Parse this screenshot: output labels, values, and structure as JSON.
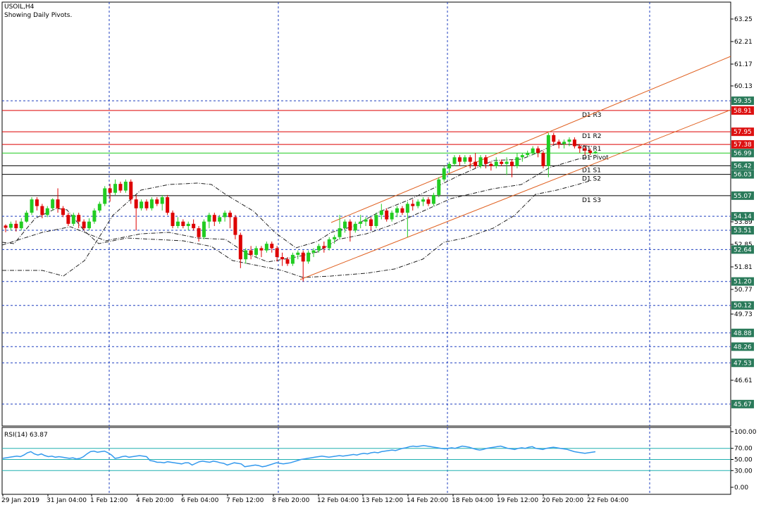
{
  "header": {
    "symbol": "USOIL,H4",
    "subtitle": "Showing Daily Pivots."
  },
  "colors": {
    "background": "#ffffff",
    "frame": "#000000",
    "grid": "#1f3fbf",
    "bull": "#22cc22",
    "bear": "#dd0000",
    "pivot_line": "#dd0000",
    "support_line": "#000000",
    "channel": "#e06020",
    "bands": "#222222",
    "rsi_line": "#3399ee",
    "rsi_level": "#20b0b0",
    "badge_green": "#2a7a5a",
    "badge_red": "#dd1111"
  },
  "chart_data": [
    {
      "type": "candlestick",
      "symbol": "USOIL",
      "timeframe": "H4",
      "y_axis_ticks": [
        "63.25",
        "62.21",
        "61.17",
        "60.13",
        "53.89",
        "52.85",
        "51.81",
        "50.77",
        "49.73",
        "46.61"
      ],
      "ylim": [
        45.4,
        63.8
      ],
      "x_axis_ticks": [
        "29 Jan 2019",
        "31 Jan 04:00",
        "1 Feb 12:00",
        "4 Feb 20:00",
        "6 Feb 04:00",
        "7 Feb 12:00",
        "8 Feb 20:00",
        "12 Feb 04:00",
        "13 Feb 12:00",
        "14 Feb 20:00",
        "18 Feb 04:00",
        "19 Feb 12:00",
        "20 Feb 20:00",
        "22 Feb 04:00"
      ],
      "pivots": [
        {
          "label": "D1 R3",
          "value": 58.91
        },
        {
          "label": "D1 R2",
          "value": 57.95
        },
        {
          "label": "D1 R1",
          "value": 57.38
        },
        {
          "label": "D1 Pivot",
          "value": 56.99
        },
        {
          "label": "D1 S1",
          "value": 56.42
        },
        {
          "label": "D1 S2",
          "value": 56.03
        },
        {
          "label": "D1 S3",
          "value": 55.07
        }
      ],
      "price_labels": [
        {
          "text": "59.35",
          "style": "green"
        },
        {
          "text": "58.91",
          "style": "red"
        },
        {
          "text": "57.95",
          "style": "red"
        },
        {
          "text": "57.38",
          "style": "red"
        },
        {
          "text": "56.99",
          "style": "green"
        },
        {
          "text": "56.42",
          "style": "green"
        },
        {
          "text": "56.03",
          "style": "green"
        },
        {
          "text": "55.07",
          "style": "green"
        },
        {
          "text": "54.14",
          "style": "green"
        },
        {
          "text": "53.51",
          "style": "green"
        },
        {
          "text": "52.64",
          "style": "green"
        },
        {
          "text": "51.20",
          "style": "green"
        },
        {
          "text": "50.12",
          "style": "green"
        },
        {
          "text": "48.88",
          "style": "green"
        },
        {
          "text": "48.26",
          "style": "green"
        },
        {
          "text": "47.53",
          "style": "green"
        },
        {
          "text": "45.67",
          "style": "green"
        }
      ],
      "horizontal_levels": [
        59.35,
        54.14,
        53.51,
        52.64,
        51.2,
        50.12,
        48.88,
        48.26,
        47.53,
        45.67
      ],
      "channel": {
        "lower": {
          "from": [
            "8 Feb 20:00",
            51.2
          ],
          "to": [
            "right-edge",
            58.95
          ]
        },
        "upper": {
          "from": [
            "12 Feb 04:00",
            54.0
          ],
          "to": [
            "right-edge",
            61.25
          ]
        }
      },
      "candles": [
        [
          53.72,
          53.62,
          53.78,
          53.42
        ],
        [
          53.62,
          53.8,
          53.9,
          53.5
        ],
        [
          53.8,
          53.6,
          53.95,
          53.45
        ],
        [
          53.6,
          53.9,
          54.05,
          53.5
        ],
        [
          53.9,
          54.3,
          54.4,
          53.85
        ],
        [
          54.3,
          54.9,
          55.0,
          54.2
        ],
        [
          54.9,
          54.6,
          55.0,
          54.4
        ],
        [
          54.6,
          54.2,
          54.7,
          54.05
        ],
        [
          54.2,
          54.5,
          54.6,
          54.1
        ],
        [
          54.5,
          54.9,
          54.95,
          54.4
        ],
        [
          54.9,
          54.5,
          55.4,
          54.3
        ],
        [
          54.5,
          54.2,
          54.6,
          54.1
        ],
        [
          54.2,
          53.8,
          54.3,
          53.7
        ],
        [
          53.8,
          54.2,
          54.3,
          53.7
        ],
        [
          54.2,
          53.9,
          54.3,
          53.6
        ],
        [
          53.9,
          53.6,
          54.0,
          53.5
        ],
        [
          53.6,
          53.9,
          54.05,
          53.5
        ],
        [
          53.9,
          54.4,
          54.5,
          53.8
        ],
        [
          54.4,
          54.7,
          54.8,
          54.3
        ],
        [
          54.7,
          55.4,
          55.5,
          54.6
        ],
        [
          55.4,
          55.2,
          55.6,
          54.8
        ],
        [
          55.2,
          55.6,
          55.8,
          55.1
        ],
        [
          55.6,
          55.3,
          55.7,
          55.2
        ],
        [
          55.3,
          55.7,
          55.8,
          55.2
        ],
        [
          55.7,
          54.9,
          55.8,
          54.7
        ],
        [
          54.9,
          54.5,
          55.1,
          53.5
        ],
        [
          54.5,
          54.8,
          54.9,
          54.4
        ],
        [
          54.8,
          54.5,
          54.9,
          54.4
        ],
        [
          54.5,
          54.9,
          55.0,
          54.4
        ],
        [
          54.9,
          54.7,
          55.0,
          54.6
        ],
        [
          54.7,
          55.0,
          55.1,
          54.4
        ],
        [
          55.0,
          54.3,
          55.1,
          54.2
        ],
        [
          54.3,
          53.7,
          54.4,
          53.6
        ],
        [
          53.7,
          53.9,
          54.1,
          53.6
        ],
        [
          53.9,
          53.7,
          54.0,
          53.6
        ],
        [
          53.7,
          53.8,
          53.9,
          53.5
        ],
        [
          53.8,
          53.6,
          54.0,
          53.5
        ],
        [
          53.6,
          53.2,
          53.7,
          53.0
        ],
        [
          53.2,
          53.9,
          54.0,
          53.1
        ],
        [
          53.9,
          54.2,
          54.3,
          53.6
        ],
        [
          54.2,
          53.9,
          54.3,
          53.7
        ],
        [
          53.9,
          54.1,
          54.2,
          53.8
        ],
        [
          54.1,
          54.3,
          54.4,
          53.9
        ],
        [
          54.3,
          54.1,
          54.4,
          53.6
        ],
        [
          54.1,
          53.3,
          54.2,
          53.1
        ],
        [
          53.3,
          52.2,
          53.4,
          51.8
        ],
        [
          52.2,
          52.6,
          52.7,
          52.0
        ],
        [
          52.6,
          52.4,
          52.8,
          52.2
        ],
        [
          52.4,
          52.7,
          52.8,
          52.3
        ],
        [
          52.7,
          52.6,
          52.8,
          52.3
        ],
        [
          52.6,
          52.9,
          53.0,
          52.5
        ],
        [
          52.9,
          52.7,
          53.0,
          52.5
        ],
        [
          52.7,
          52.3,
          52.8,
          52.1
        ],
        [
          52.3,
          52.2,
          52.5,
          51.9
        ],
        [
          52.2,
          52.0,
          52.3,
          51.9
        ],
        [
          52.0,
          52.4,
          52.5,
          51.9
        ],
        [
          52.4,
          52.5,
          52.6,
          52.2
        ],
        [
          52.5,
          52.1,
          52.6,
          51.2
        ],
        [
          52.1,
          52.5,
          52.6,
          52.0
        ],
        [
          52.5,
          52.6,
          52.7,
          52.3
        ],
        [
          52.6,
          52.8,
          52.9,
          52.5
        ],
        [
          52.8,
          52.7,
          53.0,
          52.5
        ],
        [
          52.7,
          53.1,
          53.2,
          52.6
        ],
        [
          53.1,
          53.2,
          53.3,
          52.9
        ],
        [
          53.2,
          53.6,
          54.2,
          53.1
        ],
        [
          53.6,
          53.9,
          54.0,
          53.4
        ],
        [
          53.9,
          53.5,
          54.0,
          53.0
        ],
        [
          53.5,
          53.8,
          53.9,
          53.4
        ],
        [
          53.8,
          53.9,
          54.2,
          53.6
        ],
        [
          53.9,
          54.0,
          54.1,
          53.7
        ],
        [
          54.0,
          53.7,
          54.1,
          53.5
        ],
        [
          53.7,
          54.2,
          54.3,
          53.6
        ],
        [
          54.2,
          54.4,
          54.7,
          54.0
        ],
        [
          54.4,
          54.0,
          54.5,
          53.9
        ],
        [
          54.0,
          54.3,
          54.4,
          53.9
        ],
        [
          54.3,
          54.5,
          54.6,
          54.1
        ],
        [
          54.5,
          54.3,
          54.6,
          54.2
        ],
        [
          54.3,
          54.7,
          54.8,
          53.2
        ],
        [
          54.7,
          54.6,
          54.9,
          54.4
        ],
        [
          54.6,
          54.8,
          54.9,
          54.5
        ],
        [
          54.8,
          54.9,
          55.0,
          54.6
        ],
        [
          54.9,
          54.7,
          55.0,
          54.6
        ],
        [
          54.7,
          55.1,
          55.2,
          54.6
        ],
        [
          55.1,
          55.8,
          55.9,
          55.0
        ],
        [
          55.8,
          56.3,
          56.4,
          55.7
        ],
        [
          56.3,
          56.5,
          56.6,
          56.1
        ],
        [
          56.5,
          56.8,
          56.9,
          56.4
        ],
        [
          56.8,
          56.6,
          56.9,
          56.4
        ],
        [
          56.6,
          56.8,
          56.9,
          56.5
        ],
        [
          56.8,
          56.6,
          56.9,
          56.3
        ],
        [
          56.6,
          56.4,
          57.0,
          56.3
        ],
        [
          56.4,
          56.8,
          56.9,
          56.3
        ],
        [
          56.8,
          56.5,
          56.9,
          56.3
        ],
        [
          56.5,
          56.4,
          56.6,
          56.2
        ],
        [
          56.4,
          56.6,
          56.8,
          56.3
        ],
        [
          56.6,
          56.5,
          56.7,
          56.4
        ],
        [
          56.5,
          56.6,
          56.8,
          56.0
        ],
        [
          56.6,
          56.4,
          56.7,
          55.9
        ],
        [
          56.4,
          56.8,
          57.0,
          56.3
        ],
        [
          56.8,
          56.9,
          57.0,
          56.6
        ],
        [
          56.9,
          57.0,
          57.1,
          56.8
        ],
        [
          57.0,
          57.2,
          57.3,
          56.9
        ],
        [
          57.2,
          57.0,
          57.3,
          56.8
        ],
        [
          57.0,
          56.4,
          57.1,
          56.3
        ],
        [
          56.4,
          57.8,
          57.9,
          55.9
        ],
        [
          57.8,
          57.5,
          57.9,
          57.4
        ],
        [
          57.5,
          57.4,
          57.6,
          57.2
        ],
        [
          57.4,
          57.5,
          57.6,
          57.2
        ],
        [
          57.5,
          57.6,
          57.7,
          57.3
        ],
        [
          57.6,
          57.3,
          57.7,
          57.2
        ],
        [
          57.3,
          57.2,
          57.4,
          57.0
        ],
        [
          57.2,
          57.1,
          57.3,
          56.9
        ],
        [
          57.1,
          57.0,
          57.2,
          56.9
        ],
        [
          57.0,
          57.05,
          57.1,
          56.95
        ]
      ]
    },
    {
      "type": "line",
      "title": "RSI(14) 63.87",
      "ylim": [
        0,
        100
      ],
      "y_axis_ticks": [
        "100.00",
        "70.00",
        "50.00",
        "30.00",
        "0.00"
      ],
      "levels": [
        70,
        50,
        30
      ],
      "values": [
        52,
        53,
        54,
        55,
        56,
        55,
        58,
        62,
        64,
        60,
        58,
        60,
        57,
        55,
        56,
        54,
        55,
        54,
        53,
        52,
        53,
        51,
        52,
        55,
        60,
        64,
        65,
        63,
        64,
        65,
        62,
        58,
        52,
        53,
        55,
        56,
        54,
        55,
        56,
        57,
        56,
        55,
        48,
        47,
        45,
        45,
        44,
        46,
        45,
        44,
        43,
        42,
        44,
        44,
        40,
        43,
        46,
        47,
        46,
        45,
        47,
        46,
        44,
        43,
        40,
        42,
        44,
        43,
        42,
        37,
        38,
        39,
        40,
        39,
        37,
        38,
        40,
        42,
        44,
        43,
        42,
        43,
        44,
        46,
        48,
        50,
        51,
        52,
        53,
        54,
        55,
        56,
        55,
        54,
        55,
        56,
        57,
        56,
        57,
        58,
        59,
        58,
        60,
        61,
        60,
        62,
        63,
        62,
        64,
        65,
        66,
        67,
        66,
        68,
        70,
        71,
        73,
        74,
        73,
        74,
        75,
        74,
        73,
        72,
        71,
        70,
        69,
        70,
        71,
        70,
        72,
        74,
        73,
        72,
        70,
        68,
        67,
        68,
        70,
        71,
        72,
        73,
        74,
        72,
        70,
        69,
        68,
        70,
        71,
        70,
        72,
        73,
        70,
        69,
        68,
        70,
        71,
        72,
        71,
        70,
        69,
        68,
        66,
        64,
        63,
        62,
        61,
        62,
        63,
        63.87
      ]
    }
  ]
}
